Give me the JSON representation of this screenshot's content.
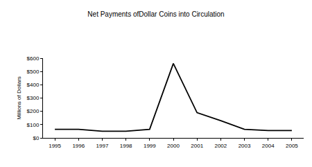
{
  "chart_data": {
    "type": "line",
    "title": "Net Payments ofDollar Coins into Circulation",
    "y_label": "Millions of Dollars",
    "categories": [
      "1995",
      "1996",
      "1997",
      "1998",
      "1999",
      "2000",
      "2001",
      "2002",
      "2003",
      "2004",
      "2005"
    ],
    "values": [
      65,
      65,
      50,
      50,
      65,
      560,
      190,
      130,
      65,
      55,
      55
    ],
    "color": "#000000",
    "ylim": [
      0,
      600
    ],
    "yticks": [
      {
        "value": 0,
        "label": "$0"
      },
      {
        "value": 100,
        "label": "$100"
      },
      {
        "value": 200,
        "label": "$200"
      },
      {
        "value": 300,
        "label": "$300"
      },
      {
        "value": 400,
        "label": "$400"
      },
      {
        "value": 500,
        "label": "$500"
      },
      {
        "value": 600,
        "label": "$600"
      }
    ],
    "grid": false
  }
}
